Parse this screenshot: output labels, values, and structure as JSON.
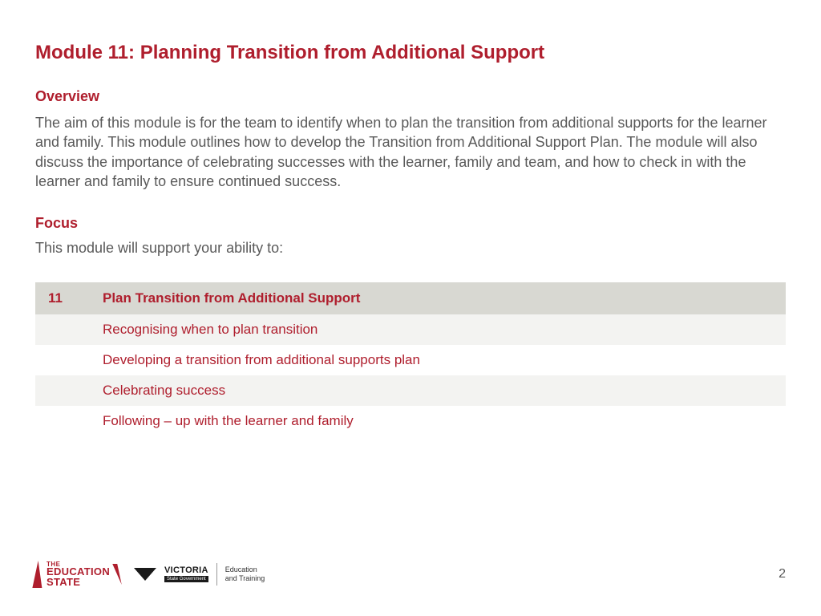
{
  "colors": {
    "accent": "#af1e2d",
    "body_text": "#595959",
    "table_header_bg": "#d8d8d2",
    "table_row_odd_bg": "#f3f3f1",
    "table_row_even_bg": "#ffffff",
    "background": "#ffffff"
  },
  "typography": {
    "title_fontsize": 24,
    "section_heading_fontsize": 18,
    "body_fontsize": 18,
    "table_fontsize": 17,
    "font_family": "Arial"
  },
  "title": "Module 11: Planning Transition from Additional Support",
  "overview": {
    "heading": "Overview",
    "text": "The aim of this module is for the team to identify when to plan the transition from additional supports for the learner and family. This module outlines how to develop the Transition from Additional Support Plan. The module will also discuss the importance of celebrating successes with the learner, family and team, and how to check in with the learner and family to ensure continued success."
  },
  "focus": {
    "heading": "Focus",
    "lead": "This module will support your ability to:"
  },
  "topics": {
    "type": "table",
    "columns": [
      "number",
      "title"
    ],
    "header": {
      "number": "11",
      "title": "Plan Transition from Additional Support"
    },
    "rows": [
      {
        "number": "",
        "title": "Recognising when to plan transition"
      },
      {
        "number": "",
        "title": "Developing a transition from additional supports plan"
      },
      {
        "number": "",
        "title": "Celebrating success"
      },
      {
        "number": "",
        "title": "Following – up with the learner and family"
      }
    ]
  },
  "footer": {
    "edu_state": {
      "the": "THE",
      "line1": "EDUCATION",
      "line2": "STATE"
    },
    "victoria": {
      "brand": "VICTORIA",
      "sub": "State Government",
      "dept_line1": "Education",
      "dept_line2": "and Training"
    },
    "page_number": "2"
  }
}
